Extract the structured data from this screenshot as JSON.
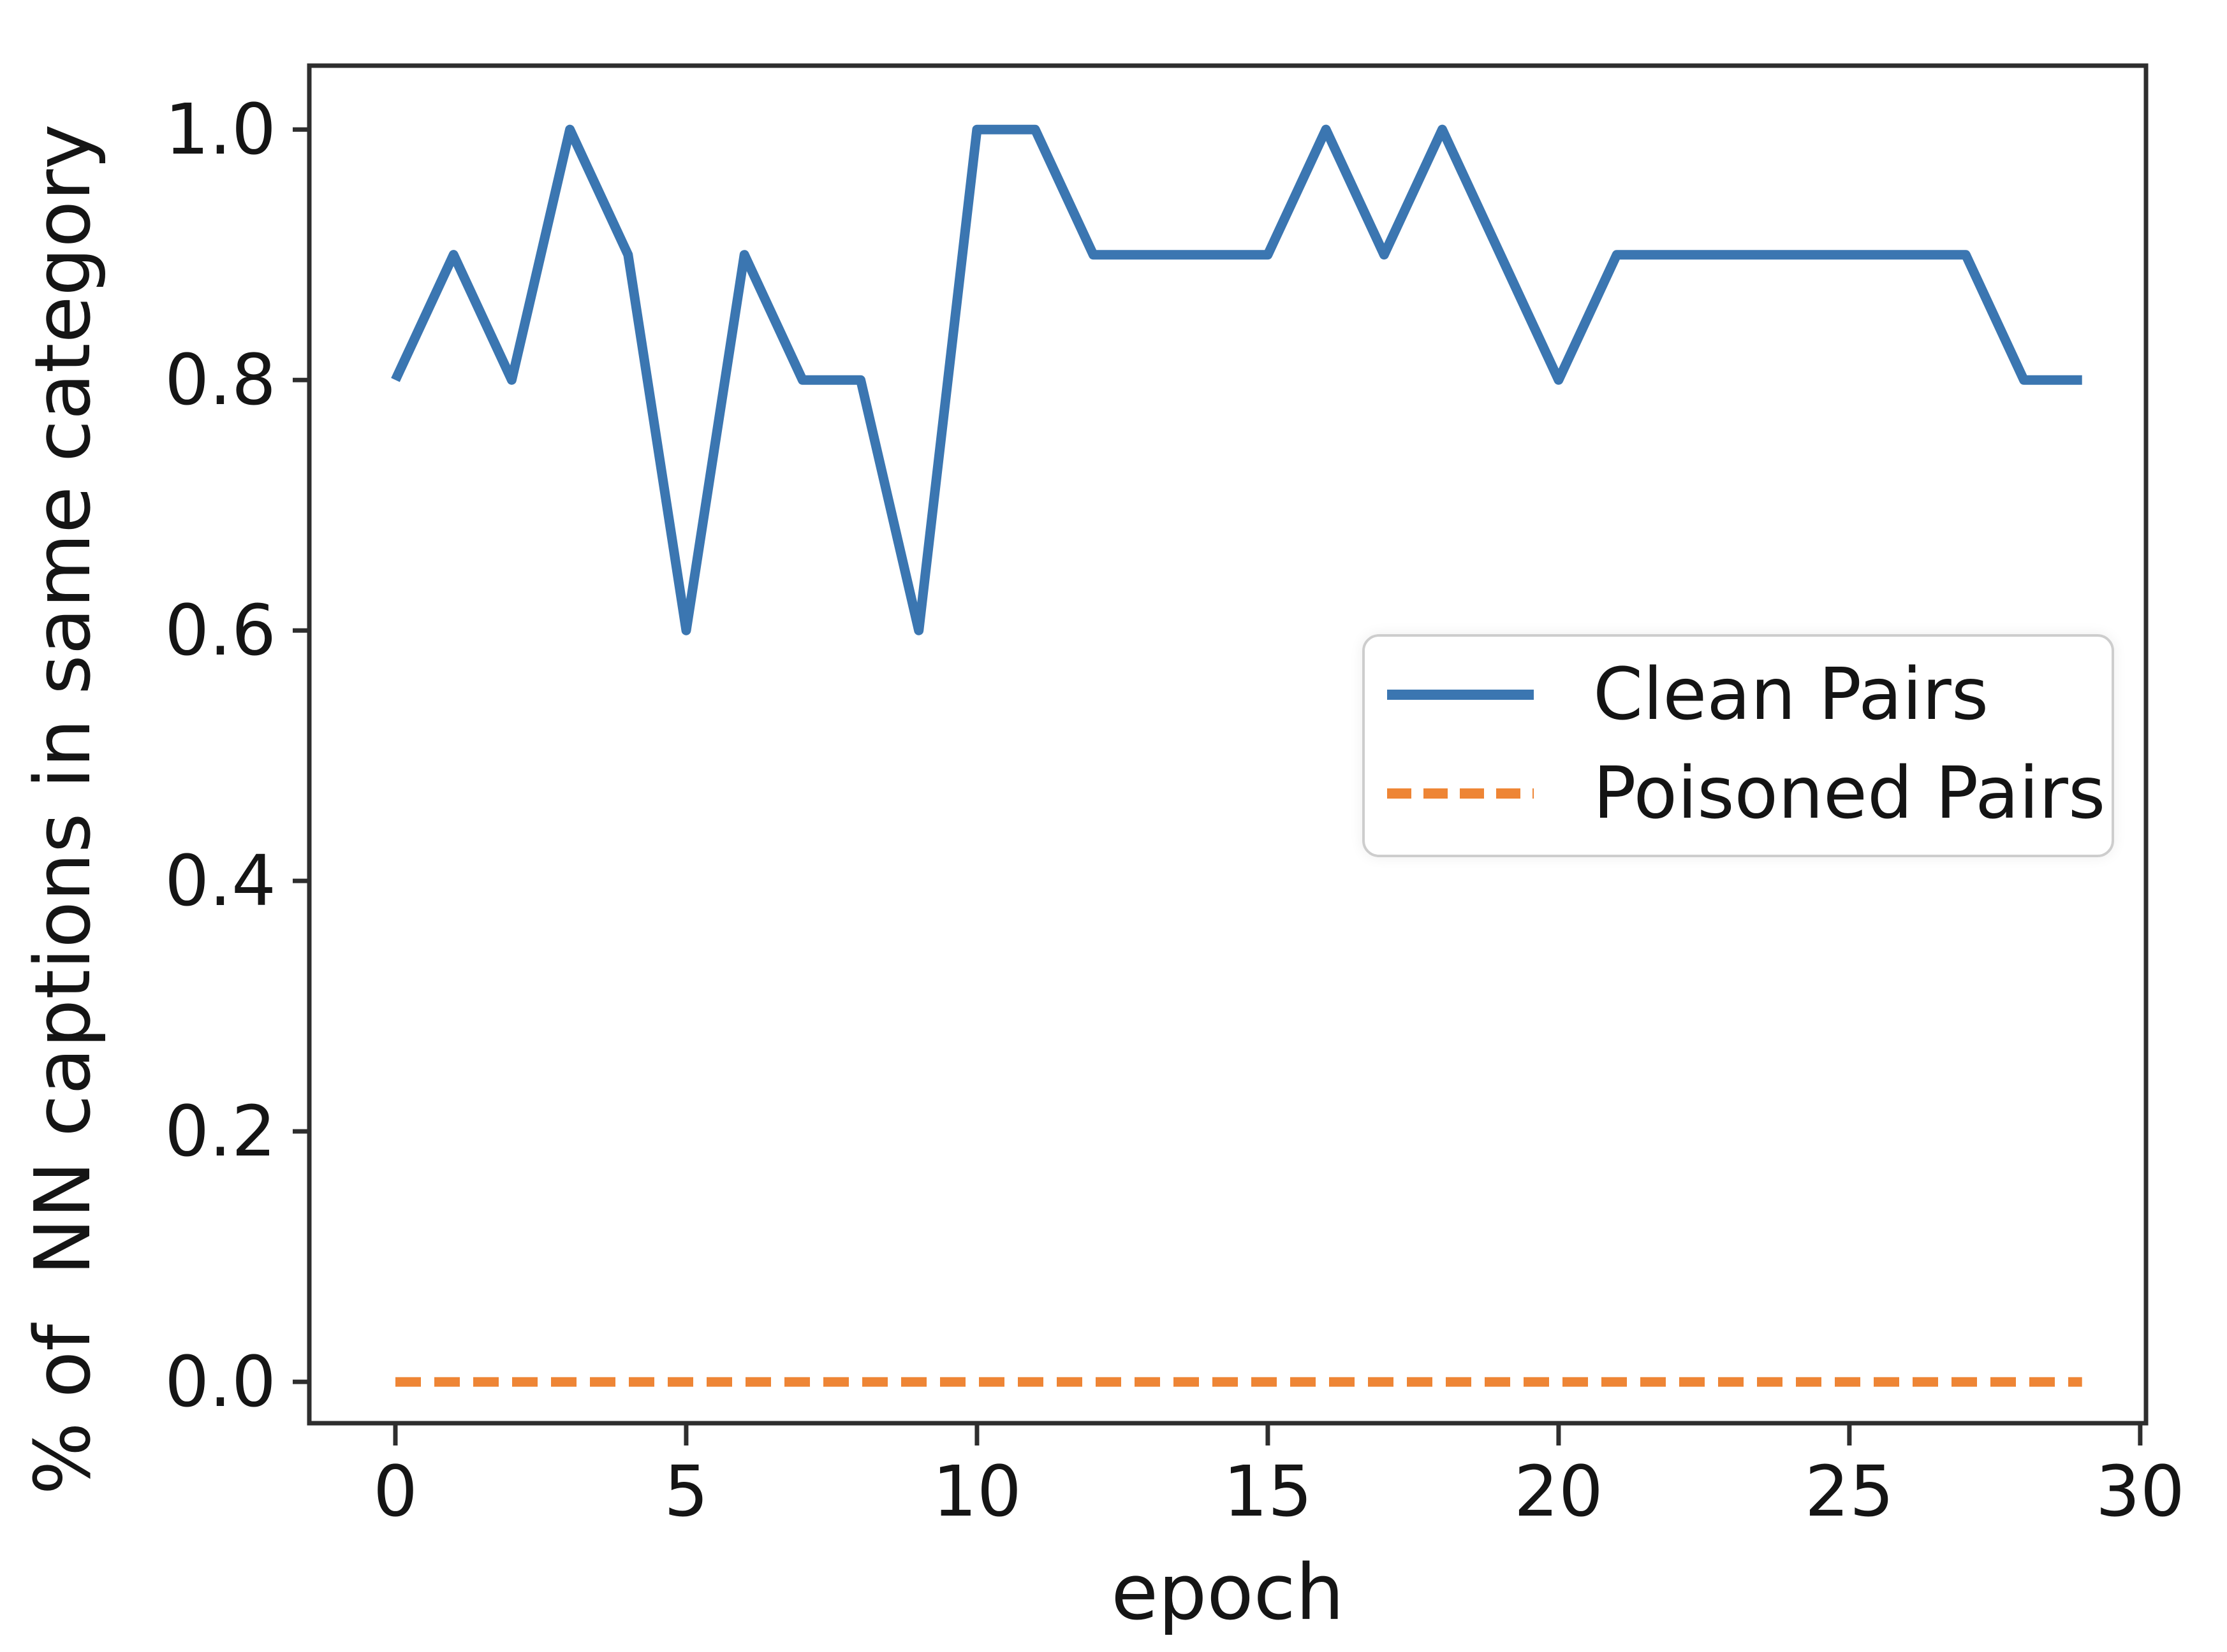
{
  "chart_data": {
    "type": "line",
    "title": "",
    "xlabel": "epoch",
    "ylabel": "% of  NN captions in same category",
    "x": [
      0,
      1,
      2,
      3,
      4,
      5,
      6,
      7,
      8,
      9,
      10,
      11,
      12,
      13,
      14,
      15,
      16,
      17,
      18,
      19,
      20,
      21,
      22,
      23,
      24,
      25,
      26,
      27,
      28,
      29
    ],
    "series": [
      {
        "name": "Clean Pairs",
        "color": "#3b76b1",
        "line_style": "solid",
        "values": [
          0.8,
          0.9,
          0.8,
          1.0,
          0.9,
          0.6,
          0.9,
          0.8,
          0.8,
          0.6,
          1.0,
          1.0,
          0.9,
          0.9,
          0.9,
          0.9,
          1.0,
          0.9,
          1.0,
          0.9,
          0.8,
          0.9,
          0.9,
          0.9,
          0.9,
          0.9,
          0.9,
          0.9,
          0.8,
          0.8
        ]
      },
      {
        "name": "Poisoned Pairs",
        "color": "#ee8535",
        "line_style": "dashed",
        "values": [
          0.0,
          0.0,
          0.0,
          0.0,
          0.0,
          0.0,
          0.0,
          0.0,
          0.0,
          0.0,
          0.0,
          0.0,
          0.0,
          0.0,
          0.0,
          0.0,
          0.0,
          0.0,
          0.0,
          0.0,
          0.0,
          0.0,
          0.0,
          0.0,
          0.0,
          0.0,
          0.0,
          0.0,
          0.0,
          0.0
        ]
      }
    ],
    "xticks": {
      "values": [
        0,
        5,
        10,
        15,
        20,
        25,
        30
      ],
      "labels": [
        "0",
        "5",
        "10",
        "15",
        "20",
        "25",
        "30"
      ]
    },
    "yticks": {
      "values": [
        0.0,
        0.2,
        0.4,
        0.6,
        0.8,
        1.0
      ],
      "labels": [
        "0.0",
        "0.2",
        "0.4",
        "0.6",
        "0.8",
        "1.0"
      ]
    },
    "xlim": [
      -1.48,
      30.1
    ],
    "ylim": [
      -0.033,
      1.051
    ],
    "grid": false,
    "legend_position": "center right"
  },
  "colors": {
    "axis": "#2e2e2e",
    "tick_text": "#151515",
    "background": "#ffffff",
    "legend_border": "#cdcdcd"
  }
}
